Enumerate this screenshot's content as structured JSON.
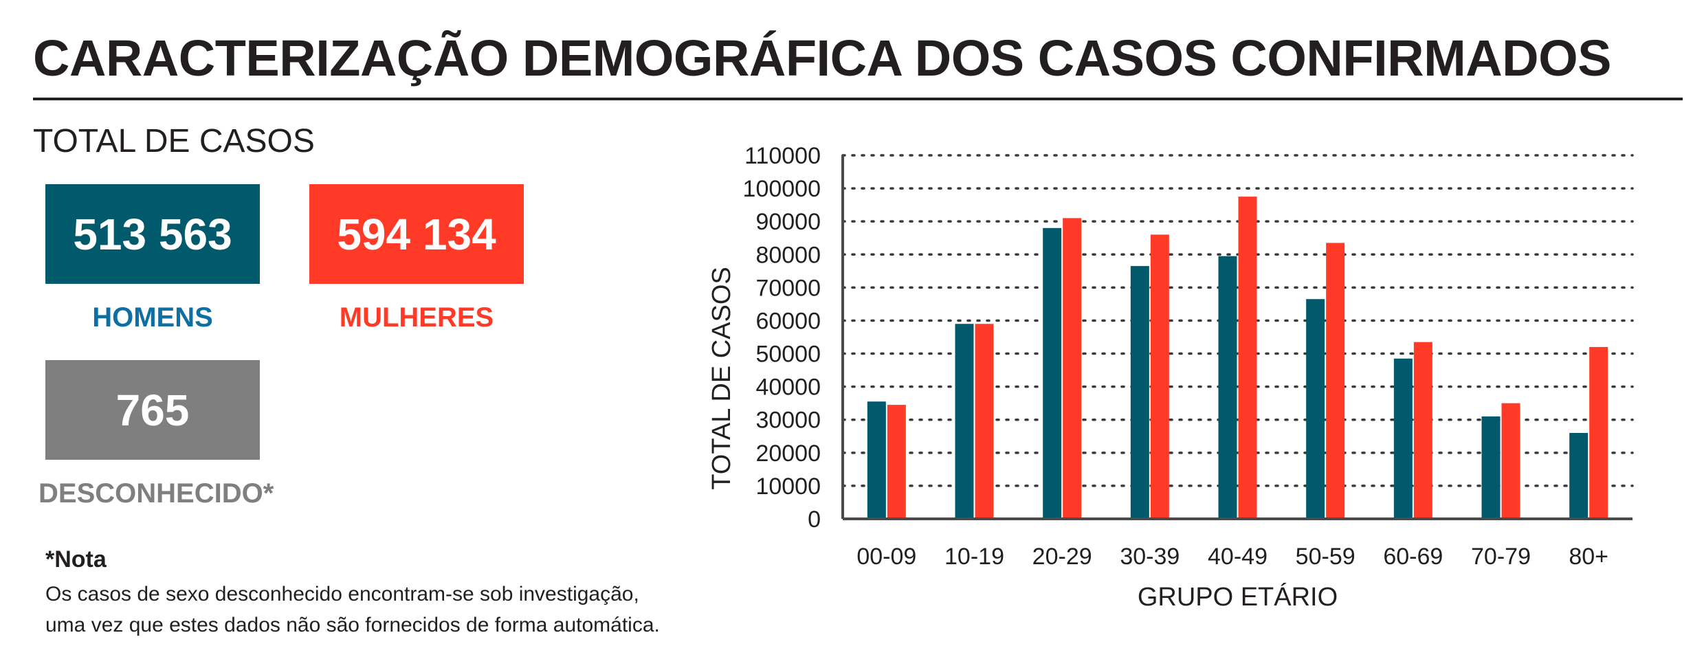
{
  "header": {
    "title": "CARACTERIZAÇÃO DEMOGRÁFICA DOS CASOS CONFIRMADOS",
    "subtitle": "TOTAL DE CASOS"
  },
  "totals": {
    "men": {
      "value": "513 563",
      "label": "HOMENS"
    },
    "women": {
      "value": "594 134",
      "label": "MULHERES"
    },
    "unknown": {
      "value": "765",
      "label": "DESCONHECIDO*"
    }
  },
  "note": {
    "title": "*Nota",
    "line1": "Os casos de sexo desconhecido encontram-se sob investigação,",
    "line2": "uma vez que estes dados não são fornecidos de forma automática."
  },
  "colors": {
    "men": "#005a6b",
    "women": "#ff3b28",
    "unknown": "#7f7f7f",
    "men_label": "#0e6fa3",
    "text": "#231f20"
  },
  "chart_data": {
    "type": "bar",
    "xlabel": "GRUPO ETÁRIO",
    "ylabel": "TOTAL DE CASOS",
    "ylim": [
      0,
      110000
    ],
    "yticks": [
      0,
      10000,
      20000,
      30000,
      40000,
      50000,
      60000,
      70000,
      80000,
      90000,
      100000,
      110000
    ],
    "grid": true,
    "categories": [
      "00-09",
      "10-19",
      "20-29",
      "30-39",
      "40-49",
      "50-59",
      "60-69",
      "70-79",
      "80+"
    ],
    "series": [
      {
        "name": "HOMENS",
        "color": "#005a6b",
        "values": [
          35500,
          59000,
          88000,
          76500,
          79500,
          66500,
          48500,
          31000,
          26000
        ]
      },
      {
        "name": "MULHERES",
        "color": "#ff3b28",
        "values": [
          34500,
          59000,
          91000,
          86000,
          97500,
          83500,
          53500,
          35000,
          52000
        ]
      }
    ]
  }
}
